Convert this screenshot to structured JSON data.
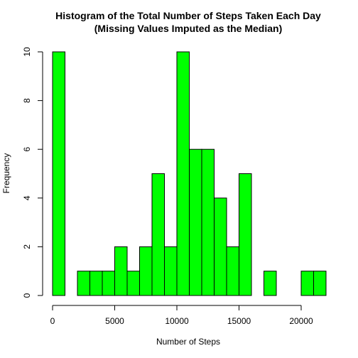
{
  "chart_data": {
    "type": "bar",
    "title_line1": "Histogram of the Total Number of Steps Taken Each Day",
    "title_line2": "(Missing Values Imputed as the Median)",
    "xlabel": "Number of Steps",
    "ylabel": "Frequency",
    "bin_width": 1000,
    "xlim": [
      0,
      22000
    ],
    "ylim": [
      0,
      10
    ],
    "xticks": [
      0,
      5000,
      10000,
      15000,
      20000
    ],
    "yticks": [
      0,
      2,
      4,
      6,
      8,
      10
    ],
    "bins": [
      {
        "start": 0,
        "end": 1000,
        "count": 10
      },
      {
        "start": 1000,
        "end": 2000,
        "count": 0
      },
      {
        "start": 2000,
        "end": 3000,
        "count": 1
      },
      {
        "start": 3000,
        "end": 4000,
        "count": 1
      },
      {
        "start": 4000,
        "end": 5000,
        "count": 1
      },
      {
        "start": 5000,
        "end": 6000,
        "count": 2
      },
      {
        "start": 6000,
        "end": 7000,
        "count": 1
      },
      {
        "start": 7000,
        "end": 8000,
        "count": 2
      },
      {
        "start": 8000,
        "end": 9000,
        "count": 5
      },
      {
        "start": 9000,
        "end": 10000,
        "count": 2
      },
      {
        "start": 10000,
        "end": 11000,
        "count": 10
      },
      {
        "start": 11000,
        "end": 12000,
        "count": 6
      },
      {
        "start": 12000,
        "end": 13000,
        "count": 6
      },
      {
        "start": 13000,
        "end": 14000,
        "count": 4
      },
      {
        "start": 14000,
        "end": 15000,
        "count": 2
      },
      {
        "start": 15000,
        "end": 16000,
        "count": 5
      },
      {
        "start": 16000,
        "end": 17000,
        "count": 0
      },
      {
        "start": 17000,
        "end": 18000,
        "count": 1
      },
      {
        "start": 18000,
        "end": 19000,
        "count": 0
      },
      {
        "start": 19000,
        "end": 20000,
        "count": 0
      },
      {
        "start": 20000,
        "end": 21000,
        "count": 1
      },
      {
        "start": 21000,
        "end": 22000,
        "count": 1
      }
    ],
    "bar_color": "#00ff00",
    "grid": false
  }
}
